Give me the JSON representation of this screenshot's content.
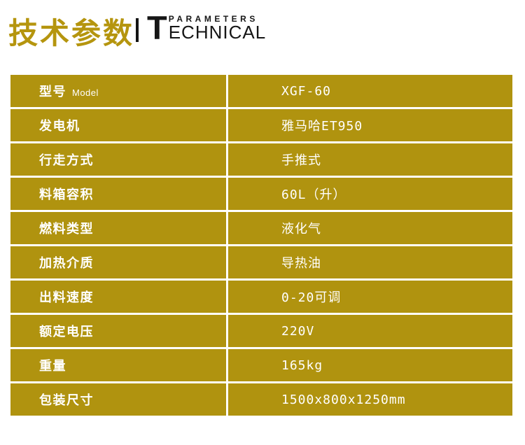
{
  "header": {
    "title_cn": "技术参数",
    "logo_initial": "T",
    "logo_top": "PARAMETERS",
    "logo_rest": "ECHNICAL"
  },
  "colors": {
    "gold": "#B0930F",
    "header_gold": "#B5950E",
    "text_white": "#FFFFFF",
    "logo_black": "#161616"
  },
  "table": {
    "rows": [
      {
        "label": "型号",
        "sublabel": "Model",
        "value": "XGF-60"
      },
      {
        "label": "发电机",
        "sublabel": "",
        "value": "雅马哈ET950"
      },
      {
        "label": "行走方式",
        "sublabel": "",
        "value": "手推式"
      },
      {
        "label": "料箱容积",
        "sublabel": "",
        "value": "60L（升）"
      },
      {
        "label": "燃料类型",
        "sublabel": "",
        "value": "液化气"
      },
      {
        "label": "加热介质",
        "sublabel": "",
        "value": "导热油"
      },
      {
        "label": "出料速度",
        "sublabel": "",
        "value": "0-20可调"
      },
      {
        "label": "额定电压",
        "sublabel": "",
        "value": "220V"
      },
      {
        "label": "重量",
        "sublabel": "",
        "value": "165kg"
      },
      {
        "label": "包装尺寸",
        "sublabel": "",
        "value": "1500x800x1250mm"
      }
    ]
  }
}
